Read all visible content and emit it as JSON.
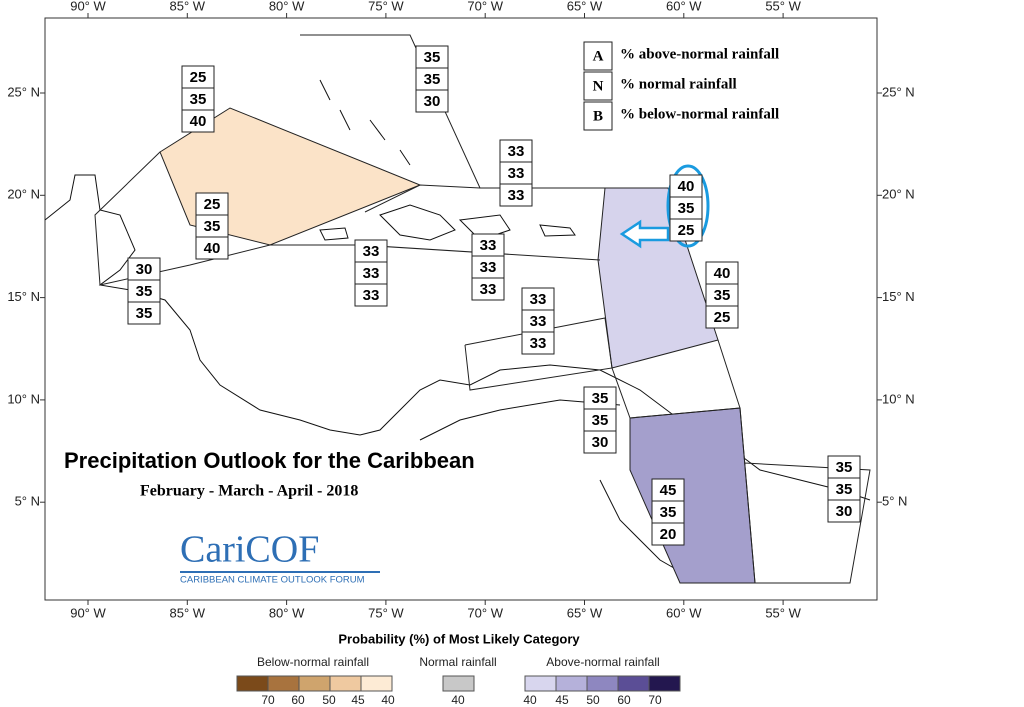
{
  "title": "Precipitation Outlook for the Caribbean",
  "subtitle": "February - March - April - 2018",
  "lon_ticks": [
    "90° W",
    "85° W",
    "80° W",
    "75° W",
    "70° W",
    "65° W",
    "60° W",
    "55° W"
  ],
  "lat_ticks": [
    "25° N",
    "20° N",
    "15° N",
    "10° N",
    "5° N"
  ],
  "key": [
    {
      "letter": "A",
      "text": "% above-normal rainfall"
    },
    {
      "letter": "N",
      "text": "% normal rainfall"
    },
    {
      "letter": "B",
      "text": "% below-normal rainfall"
    }
  ],
  "regions": [
    {
      "probs": [
        35,
        35,
        30
      ]
    },
    {
      "probs": [
        25,
        35,
        40
      ]
    },
    {
      "probs": [
        25,
        35,
        40
      ]
    },
    {
      "probs": [
        30,
        35,
        35
      ]
    },
    {
      "probs": [
        33,
        33,
        33
      ]
    },
    {
      "probs": [
        33,
        33,
        33
      ]
    },
    {
      "probs": [
        33,
        33,
        33
      ]
    },
    {
      "probs": [
        40,
        35,
        25
      ]
    },
    {
      "probs": [
        40,
        35,
        25
      ]
    },
    {
      "probs": [
        33,
        33,
        33
      ]
    },
    {
      "probs": [
        35,
        35,
        30
      ]
    },
    {
      "probs": [
        45,
        35,
        20
      ]
    },
    {
      "probs": [
        35,
        35,
        30
      ]
    }
  ],
  "logo": {
    "name": "CariCOF",
    "tagline": "CARIBBEAN CLIMATE OUTLOOK FORUM"
  },
  "colorbar": {
    "title": "Probability (%) of Most Likely Category",
    "groups": [
      {
        "name": "Below-normal rainfall",
        "labels": [
          70,
          60,
          50,
          45,
          40
        ]
      },
      {
        "name": "Normal rainfall",
        "labels": [
          40
        ]
      },
      {
        "name": "Above-normal rainfall",
        "labels": [
          40,
          45,
          50,
          60,
          70
        ]
      }
    ]
  }
}
